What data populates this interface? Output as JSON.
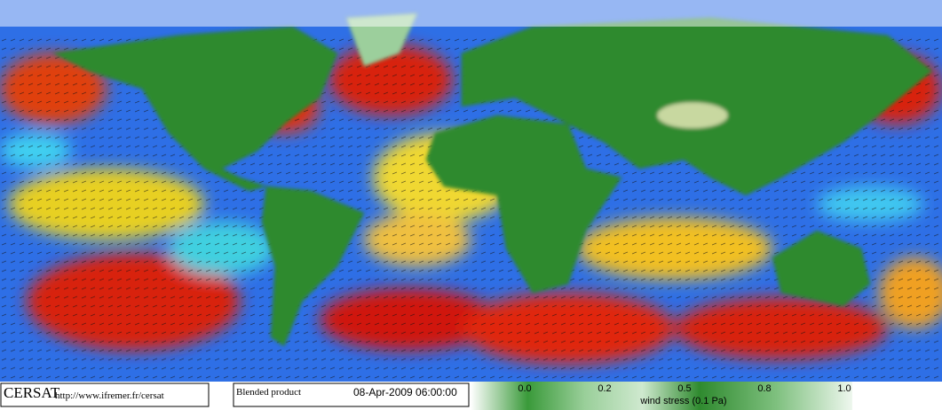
{
  "logo": "CERSAT",
  "url": "http://www.ifremer.fr/cersat",
  "product": "Blended product",
  "date": "08-Apr-2009 06:00:00",
  "colorbar": {
    "ticks": [
      "0.0",
      "0.2",
      "0.5",
      "0.8",
      "1.0"
    ],
    "label": "wind stress (0.1 Pa)"
  }
}
